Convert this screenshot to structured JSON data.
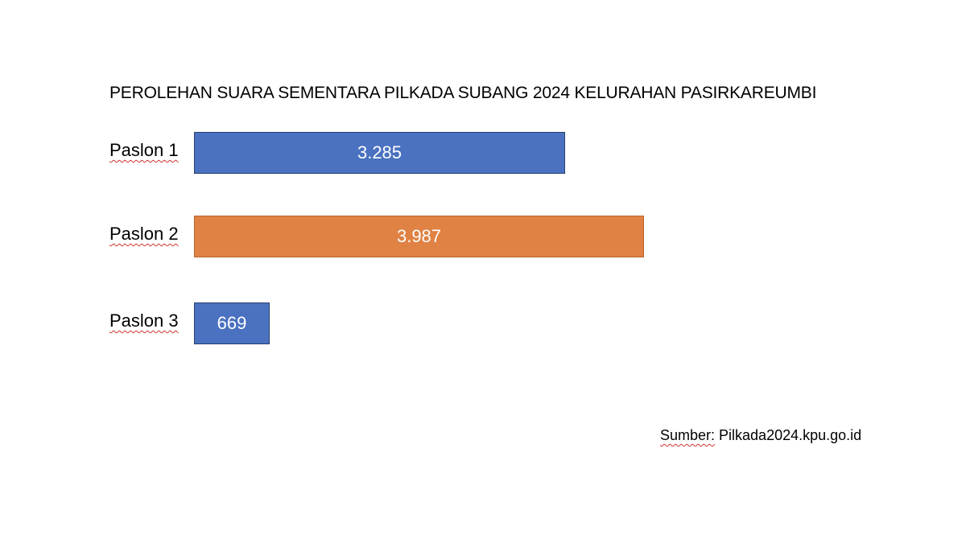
{
  "chart_data": {
    "type": "bar",
    "orientation": "horizontal",
    "title": "PEROLEHAN SUARA SEMENTARA PILKADA SUBANG 2024 KELURAHAN PASIRKAREUMBI",
    "categories": [
      "Paslon 1",
      "Paslon 2",
      "Paslon 3"
    ],
    "values": [
      3285,
      3987,
      669
    ],
    "value_labels": [
      "3.285",
      "3.987",
      "669"
    ],
    "bar_colors": [
      "#4a72c0",
      "#e08243",
      "#4a72c0"
    ],
    "bar_border_colors": [
      "#2a3f6e",
      "#b8652d",
      "#2a3f6e"
    ],
    "xlim": [
      0,
      3987
    ],
    "grid": false,
    "legend": "none"
  },
  "source": {
    "label": "Sumber:",
    "text": " Pilkada2024.kpu.go.id"
  }
}
